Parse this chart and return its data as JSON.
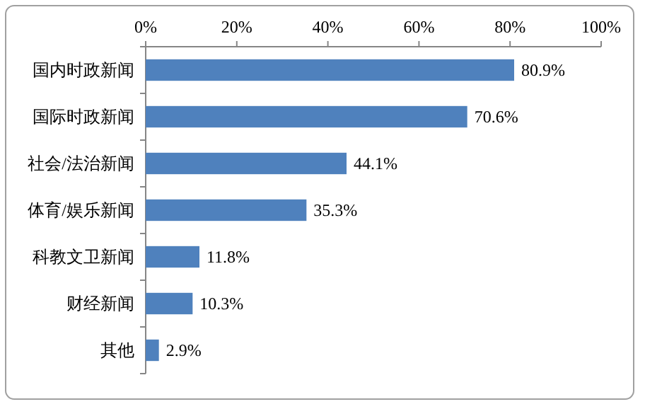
{
  "chart_data": {
    "type": "bar",
    "orientation": "horizontal",
    "categories": [
      "国内时政新闻",
      "国际时政新闻",
      "社会/法治新闻",
      "体育/娱乐新闻",
      "科教文卫新闻",
      "财经新闻",
      "其他"
    ],
    "values": [
      80.9,
      70.6,
      44.1,
      35.3,
      11.8,
      10.3,
      2.9
    ],
    "value_labels": [
      "80.9%",
      "70.6%",
      "44.1%",
      "35.3%",
      "11.8%",
      "10.3%",
      "2.9%"
    ],
    "color": "#4f81bd",
    "xlim": [
      0,
      100
    ],
    "xticks": [
      {
        "value": 0,
        "label": "0%"
      },
      {
        "value": 20,
        "label": "20%"
      },
      {
        "value": 40,
        "label": "40%"
      },
      {
        "value": 60,
        "label": "60%"
      },
      {
        "value": 80,
        "label": "80%"
      },
      {
        "value": 100,
        "label": "100%"
      }
    ]
  }
}
